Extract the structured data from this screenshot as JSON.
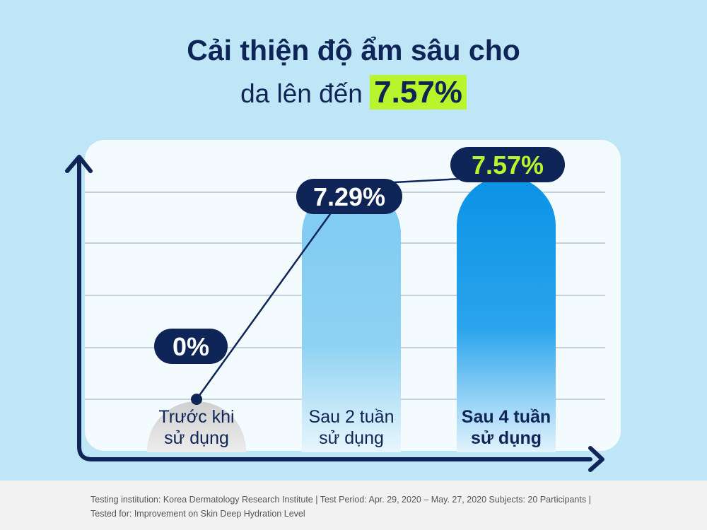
{
  "heading": {
    "line1": "Cải thiện độ ẩm sâu cho",
    "line2": "da lên đến",
    "highlight": "7.57%"
  },
  "chart_data": {
    "type": "bar",
    "categories": [
      [
        "Trước khi",
        "sử dụng"
      ],
      [
        "Sau 2 tuần",
        "sử dụng"
      ],
      [
        "Sau 4 tuần",
        "sử dụng"
      ]
    ],
    "values": [
      0,
      7.29,
      7.57
    ],
    "value_labels": [
      "0%",
      "7.29%",
      "7.57%"
    ],
    "ylim": [
      0,
      9
    ],
    "grid": true,
    "colors": {
      "axis": "#0f2557",
      "panel": "#f4fbff",
      "gridline": "#a9b8c8",
      "label_bg": "#0f2557",
      "label_text": "#ffffff",
      "label_highlight": "#b9f52c",
      "bar_2wk": "#7ccaf1",
      "bar_4wk": "#0a93e6",
      "bar_before": "#c8c8c8"
    }
  },
  "footer": {
    "line1": "Testing institution: Korea Dermatology Research Institute | Test Period: Apr. 29, 2020 – May. 27, 2020 Subjects: 20 Participants |",
    "line2": "Tested for: Improvement on Skin Deep Hydration Level"
  }
}
